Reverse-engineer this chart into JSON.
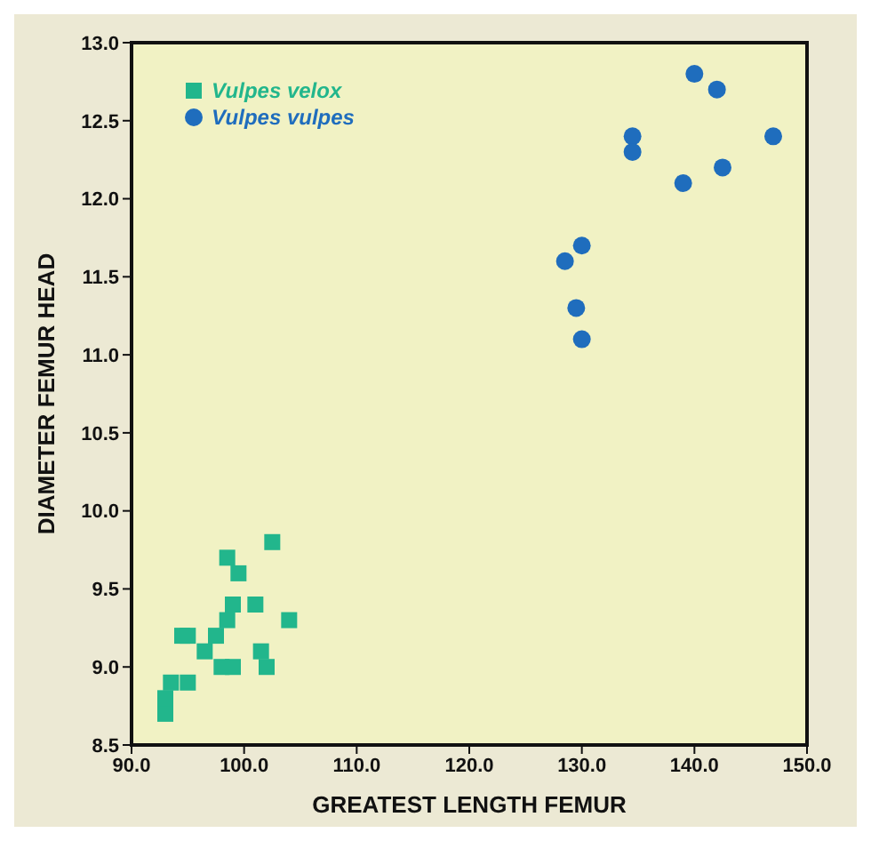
{
  "chart_data": {
    "type": "scatter",
    "xlabel": "GREATEST LENGTH FEMUR",
    "ylabel": "DIAMETER FEMUR HEAD",
    "xlim": [
      90,
      150
    ],
    "ylim": [
      8.5,
      13
    ],
    "xticks": [
      {
        "value": 90,
        "label": "90.0"
      },
      {
        "value": 100,
        "label": "100.0"
      },
      {
        "value": 110,
        "label": "110.0"
      },
      {
        "value": 120,
        "label": "120.0"
      },
      {
        "value": 130,
        "label": "130.0"
      },
      {
        "value": 140,
        "label": "140.0"
      },
      {
        "value": 150,
        "label": "150.0"
      }
    ],
    "yticks": [
      {
        "value": 8.5,
        "label": "8.5"
      },
      {
        "value": 9,
        "label": "9.0"
      },
      {
        "value": 9.5,
        "label": "9.5"
      },
      {
        "value": 10,
        "label": "10.0"
      },
      {
        "value": 10.5,
        "label": "10.5"
      },
      {
        "value": 11,
        "label": "11.0"
      },
      {
        "value": 11.5,
        "label": "11.5"
      },
      {
        "value": 12,
        "label": "12.0"
      },
      {
        "value": 12.5,
        "label": "12.5"
      },
      {
        "value": 13,
        "label": "13.0"
      }
    ],
    "grid": false,
    "legend": "top left",
    "series": [
      {
        "name": "Vulpes velox",
        "color": "#22b68c",
        "marker": "square",
        "x": [
          93,
          93,
          93.5,
          95,
          94.5,
          95,
          96.5,
          97.5,
          98,
          98.5,
          99,
          99,
          98.5,
          99.5,
          101,
          101.5,
          102,
          102.5,
          104
        ],
        "values": [
          8.7,
          8.8,
          8.9,
          8.9,
          9.2,
          9.2,
          9.1,
          9.2,
          9,
          9.3,
          9,
          9.4,
          9.7,
          9.6,
          9.4,
          9.1,
          9,
          9.8,
          9.3
        ]
      },
      {
        "name": "Vulpes vulpes",
        "color": "#1f6dbd",
        "marker": "circle",
        "x": [
          140,
          142,
          134.5,
          134.5,
          147,
          139,
          142.5,
          130,
          128.5,
          129.5,
          130
        ],
        "values": [
          12.8,
          12.7,
          12.4,
          12.3,
          12.4,
          12.1,
          12.2,
          11.7,
          11.6,
          11.3,
          11.1
        ]
      }
    ]
  }
}
